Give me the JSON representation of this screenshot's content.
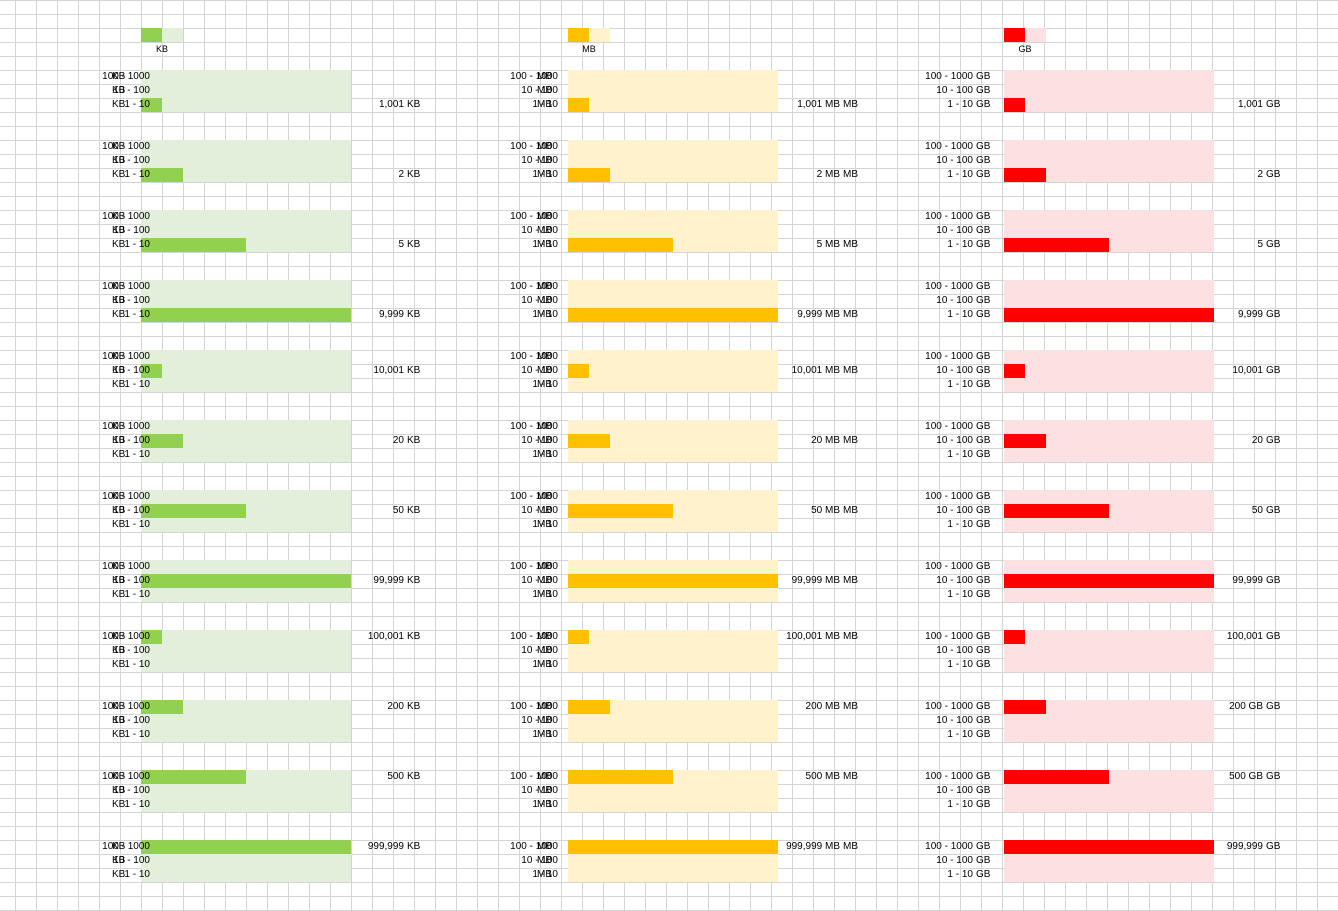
{
  "sheet": {
    "range_labels": [
      "100 - 1000",
      "10 - 100",
      "1 - 10"
    ]
  },
  "groups": [
    {
      "unit": "KB",
      "legend_label": "KB",
      "colors": {
        "fill": "#92d050",
        "track": "#e2efda",
        "legend_light": "#e2efda"
      },
      "blocks": [
        {
          "value_text": "1,001",
          "unit_suffix": "KB",
          "value_row": 2,
          "bar_row": 2,
          "fill_fraction": 0.1
        },
        {
          "value_text": "2",
          "unit_suffix": "KB",
          "value_row": 2,
          "bar_row": 2,
          "fill_fraction": 0.2
        },
        {
          "value_text": "5",
          "unit_suffix": "KB",
          "value_row": 2,
          "bar_row": 2,
          "fill_fraction": 0.5
        },
        {
          "value_text": "9,999",
          "unit_suffix": "KB",
          "value_row": 2,
          "bar_row": 2,
          "fill_fraction": 1.0
        },
        {
          "value_text": "10,001",
          "unit_suffix": "KB",
          "value_row": 1,
          "bar_row": 1,
          "fill_fraction": 0.1
        },
        {
          "value_text": "20",
          "unit_suffix": "KB",
          "value_row": 1,
          "bar_row": 1,
          "fill_fraction": 0.2
        },
        {
          "value_text": "50",
          "unit_suffix": "KB",
          "value_row": 1,
          "bar_row": 1,
          "fill_fraction": 0.5
        },
        {
          "value_text": "99,999",
          "unit_suffix": "KB",
          "value_row": 1,
          "bar_row": 1,
          "fill_fraction": 1.0
        },
        {
          "value_text": "100,001",
          "unit_suffix": "KB",
          "value_row": 0,
          "bar_row": 0,
          "fill_fraction": 0.1
        },
        {
          "value_text": "200",
          "unit_suffix": "KB",
          "value_row": 0,
          "bar_row": 0,
          "fill_fraction": 0.2
        },
        {
          "value_text": "500",
          "unit_suffix": "KB",
          "value_row": 0,
          "bar_row": 0,
          "fill_fraction": 0.5
        },
        {
          "value_text": "999,999",
          "unit_suffix": "KB",
          "value_row": 0,
          "bar_row": 0,
          "fill_fraction": 1.0
        }
      ]
    },
    {
      "unit": "MB",
      "legend_label": "MB",
      "colors": {
        "fill": "#ffc000",
        "track": "#fff2cc",
        "legend_light": "#fff2cc"
      },
      "blocks": [
        {
          "value_text": "1,001 MB",
          "unit_suffix": "MB",
          "value_row": 2,
          "bar_row": 2,
          "fill_fraction": 0.1
        },
        {
          "value_text": "2 MB",
          "unit_suffix": "MB",
          "value_row": 2,
          "bar_row": 2,
          "fill_fraction": 0.2
        },
        {
          "value_text": "5 MB",
          "unit_suffix": "MB",
          "value_row": 2,
          "bar_row": 2,
          "fill_fraction": 0.5
        },
        {
          "value_text": "9,999 MB",
          "unit_suffix": "MB",
          "value_row": 2,
          "bar_row": 2,
          "fill_fraction": 1.0
        },
        {
          "value_text": "10,001 MB",
          "unit_suffix": "MB",
          "value_row": 1,
          "bar_row": 1,
          "fill_fraction": 0.1
        },
        {
          "value_text": "20 MB",
          "unit_suffix": "MB",
          "value_row": 1,
          "bar_row": 1,
          "fill_fraction": 0.2
        },
        {
          "value_text": "50 MB",
          "unit_suffix": "MB",
          "value_row": 1,
          "bar_row": 1,
          "fill_fraction": 0.5
        },
        {
          "value_text": "99,999 MB",
          "unit_suffix": "MB",
          "value_row": 1,
          "bar_row": 1,
          "fill_fraction": 1.0
        },
        {
          "value_text": "100,001 MB",
          "unit_suffix": "MB",
          "value_row": 0,
          "bar_row": 0,
          "fill_fraction": 0.1
        },
        {
          "value_text": "200 MB",
          "unit_suffix": "MB",
          "value_row": 0,
          "bar_row": 0,
          "fill_fraction": 0.2
        },
        {
          "value_text": "500 MB",
          "unit_suffix": "MB",
          "value_row": 0,
          "bar_row": 0,
          "fill_fraction": 0.5
        },
        {
          "value_text": "999,999 MB",
          "unit_suffix": "MB",
          "value_row": 0,
          "bar_row": 0,
          "fill_fraction": 1.0
        }
      ]
    },
    {
      "unit": "GB",
      "legend_label": "GB",
      "colors": {
        "fill": "#ff0000",
        "track": "#fde0e2",
        "legend_light": "#fde0e2"
      },
      "blocks": [
        {
          "value_text": "1,001",
          "unit_suffix": "GB",
          "value_row": 2,
          "bar_row": 2,
          "fill_fraction": 0.1
        },
        {
          "value_text": "2",
          "unit_suffix": "GB",
          "value_row": 2,
          "bar_row": 2,
          "fill_fraction": 0.2
        },
        {
          "value_text": "5",
          "unit_suffix": "GB",
          "value_row": 2,
          "bar_row": 2,
          "fill_fraction": 0.5
        },
        {
          "value_text": "9,999",
          "unit_suffix": "GB",
          "value_row": 2,
          "bar_row": 2,
          "fill_fraction": 1.0
        },
        {
          "value_text": "10,001",
          "unit_suffix": "GB",
          "value_row": 1,
          "bar_row": 1,
          "fill_fraction": 0.1
        },
        {
          "value_text": "20",
          "unit_suffix": "GB",
          "value_row": 1,
          "bar_row": 1,
          "fill_fraction": 0.2
        },
        {
          "value_text": "50",
          "unit_suffix": "GB",
          "value_row": 1,
          "bar_row": 1,
          "fill_fraction": 0.5
        },
        {
          "value_text": "99,999",
          "unit_suffix": "GB",
          "value_row": 1,
          "bar_row": 1,
          "fill_fraction": 1.0
        },
        {
          "value_text": "100,001",
          "unit_suffix": "GB",
          "value_row": 0,
          "bar_row": 0,
          "fill_fraction": 0.1
        },
        {
          "value_text": "200 GB",
          "unit_suffix": "GB",
          "value_row": 0,
          "bar_row": 0,
          "fill_fraction": 0.2
        },
        {
          "value_text": "500 GB",
          "unit_suffix": "GB",
          "value_row": 0,
          "bar_row": 0,
          "fill_fraction": 0.5
        },
        {
          "value_text": "999,999",
          "unit_suffix": "GB",
          "value_row": 0,
          "bar_row": 0,
          "fill_fraction": 1.0
        }
      ]
    }
  ]
}
